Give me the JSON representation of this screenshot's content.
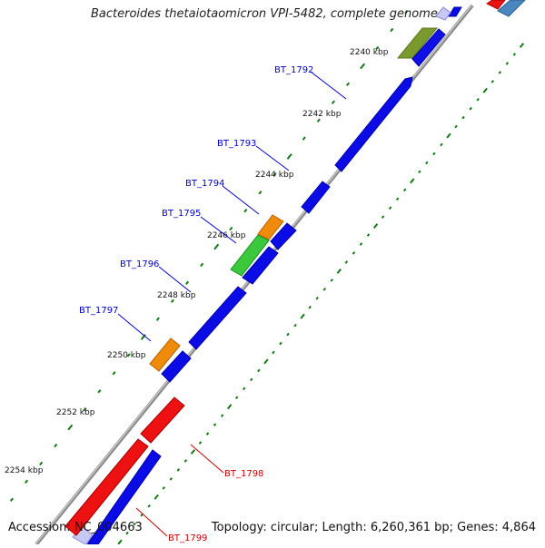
{
  "title": "Bacteroides thetaiotaomicron VPI-5482, complete genome",
  "footer": {
    "accession": "Accession: NC_004663",
    "summary": "Topology: circular; Length: 6,260,361 bp; Genes: 4,864"
  },
  "colors": {
    "backbone": "#7f7f7f",
    "tick": "#117a11",
    "forward_cds": "#0b0be6",
    "reverse_cds": "#ee1111",
    "gene_orange": "#f08a0a",
    "gene_green": "#3cc83c",
    "gene_olive": "#7a9a2e",
    "gene_steel": "#4a86c0",
    "forward_label": "#0000cc",
    "reverse_label": "#cc0000"
  },
  "map": {
    "unit": "kbp",
    "scale_labels": [
      "2240 kbp",
      "2242 kbp",
      "2244 kbp",
      "2246 kbp",
      "2248 kbp",
      "2250 kbp",
      "2252 kbp",
      "2254 kbp"
    ],
    "forward_genes": [
      {
        "label": "BT_1792",
        "start_kbp": 2240.3,
        "end_kbp": 2243.6
      },
      {
        "label": "BT_1793",
        "start_kbp": 2243.7,
        "end_kbp": 2244.25
      },
      {
        "label": "BT_1794",
        "start_kbp": 2244.9,
        "end_kbp": 2245.4
      },
      {
        "label": "BT_1795",
        "start_kbp": 2245.45,
        "end_kbp": 2246.5
      },
      {
        "label": "BT_1796",
        "start_kbp": 2246.7,
        "end_kbp": 2249.2
      },
      {
        "label": "BT_1797",
        "start_kbp": 2249.5,
        "end_kbp": 2250.0
      }
    ],
    "reverse_genes": [
      {
        "label": "BT_1798",
        "start_kbp": 2250.6,
        "end_kbp": 2251.9
      },
      {
        "label": "BT_1799",
        "start_kbp": 2252.0,
        "end_kbp": 2254.7
      }
    ]
  }
}
